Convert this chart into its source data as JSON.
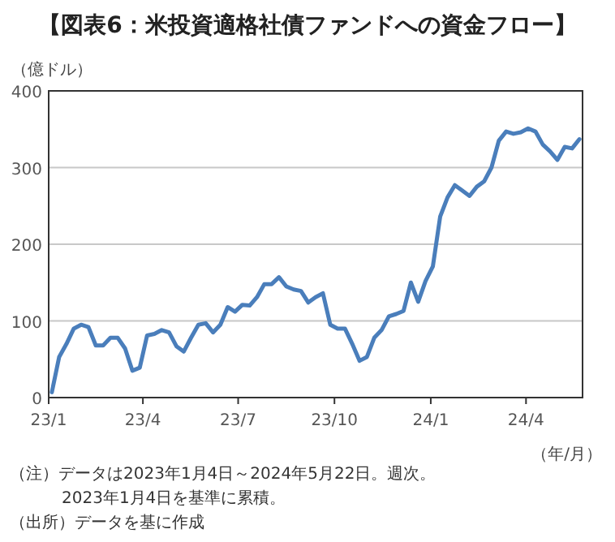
{
  "chart_data": {
    "type": "line",
    "title": "【図表6：米投資適格社債ファンドへの資金フロー】",
    "ylabel": "（億ドル）",
    "xlabel": "（年/月）",
    "annotations": [
      "（注）データは2023年1月4日～2024年5月22日。週次。",
      "2023年1月4日を基準に累積。",
      "（出所）データを基に作成"
    ],
    "x": [
      "2023-01-04",
      "2023-01-11",
      "2023-01-18",
      "2023-01-25",
      "2023-02-01",
      "2023-02-08",
      "2023-02-15",
      "2023-02-22",
      "2023-03-01",
      "2023-03-08",
      "2023-03-15",
      "2023-03-22",
      "2023-03-29",
      "2023-04-05",
      "2023-04-12",
      "2023-04-19",
      "2023-04-26",
      "2023-05-03",
      "2023-05-10",
      "2023-05-17",
      "2023-05-24",
      "2023-05-31",
      "2023-06-07",
      "2023-06-14",
      "2023-06-21",
      "2023-06-28",
      "2023-07-05",
      "2023-07-12",
      "2023-07-19",
      "2023-07-26",
      "2023-08-02",
      "2023-08-09",
      "2023-08-16",
      "2023-08-23",
      "2023-08-30",
      "2023-09-06",
      "2023-09-13",
      "2023-09-20",
      "2023-09-27",
      "2023-10-04",
      "2023-10-11",
      "2023-10-18",
      "2023-10-25",
      "2023-11-01",
      "2023-11-08",
      "2023-11-15",
      "2023-11-22",
      "2023-11-29",
      "2023-12-06",
      "2023-12-13",
      "2023-12-20",
      "2023-12-27",
      "2024-01-03",
      "2024-01-10",
      "2024-01-17",
      "2024-01-24",
      "2024-01-31",
      "2024-02-07",
      "2024-02-14",
      "2024-02-21",
      "2024-02-28",
      "2024-03-06",
      "2024-03-13",
      "2024-03-20",
      "2024-03-27",
      "2024-04-03",
      "2024-04-10",
      "2024-04-17",
      "2024-04-24",
      "2024-05-01",
      "2024-05-08",
      "2024-05-15",
      "2024-05-22"
    ],
    "series": [
      {
        "color": "#4a7ebb",
        "values": [
          7,
          53,
          70,
          90,
          95,
          92,
          68,
          68,
          78,
          78,
          64,
          35,
          39,
          81,
          83,
          88,
          85,
          67,
          60,
          78,
          95,
          97,
          85,
          95,
          118,
          112,
          121,
          120,
          131,
          148,
          148,
          157,
          145,
          141,
          139,
          124,
          131,
          136,
          95,
          90,
          90,
          70,
          48,
          53,
          78,
          88,
          106,
          109,
          113,
          150,
          125,
          152,
          171,
          236,
          261,
          277,
          270,
          263,
          275,
          282,
          300,
          335,
          347,
          344,
          346,
          351,
          347,
          330,
          321,
          310,
          327,
          325,
          337
        ]
      }
    ],
    "xlim": [
      "2023-01-01",
      "2024-05-25"
    ],
    "xticks": [
      {
        "value": "2023-01-01",
        "label": "23/1"
      },
      {
        "value": "2023-04-01",
        "label": "23/4"
      },
      {
        "value": "2023-07-01",
        "label": "23/7"
      },
      {
        "value": "2023-10-01",
        "label": "23/10"
      },
      {
        "value": "2024-01-01",
        "label": "24/1"
      },
      {
        "value": "2024-04-01",
        "label": "24/4"
      }
    ],
    "ylim": [
      0,
      400
    ],
    "yticks": [
      0,
      100,
      200,
      300,
      400
    ],
    "grid": "y",
    "marker": "none",
    "line_style": "solid"
  }
}
